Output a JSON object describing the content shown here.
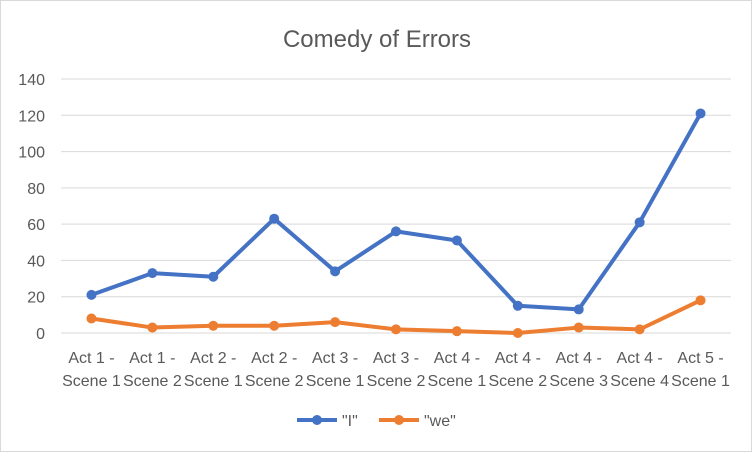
{
  "chart_data": {
    "type": "line",
    "title": "Comedy of Errors",
    "categories": [
      [
        "Act 1 -",
        "Scene 1"
      ],
      [
        "Act 1 -",
        "Scene 2"
      ],
      [
        "Act 2 -",
        "Scene 1"
      ],
      [
        "Act 2 -",
        "Scene 2"
      ],
      [
        "Act 3 -",
        "Scene 1"
      ],
      [
        "Act 3 -",
        "Scene 2"
      ],
      [
        "Act 4 -",
        "Scene 1"
      ],
      [
        "Act 4 -",
        "Scene 2"
      ],
      [
        "Act 4 -",
        "Scene 3"
      ],
      [
        "Act 4 -",
        "Scene 4"
      ],
      [
        "Act 5 -",
        "Scene 1"
      ]
    ],
    "series": [
      {
        "name": "\"I\"",
        "color": "#4472c4",
        "values": [
          21,
          33,
          31,
          63,
          34,
          56,
          51,
          15,
          13,
          61,
          121
        ]
      },
      {
        "name": "\"we\"",
        "color": "#ed7d31",
        "values": [
          8,
          3,
          4,
          4,
          6,
          2,
          1,
          0,
          3,
          2,
          18
        ]
      }
    ],
    "ylim": [
      0,
      140
    ],
    "yticks": [
      0,
      20,
      40,
      60,
      80,
      100,
      120,
      140
    ],
    "grid": true,
    "legend": "bottom"
  }
}
